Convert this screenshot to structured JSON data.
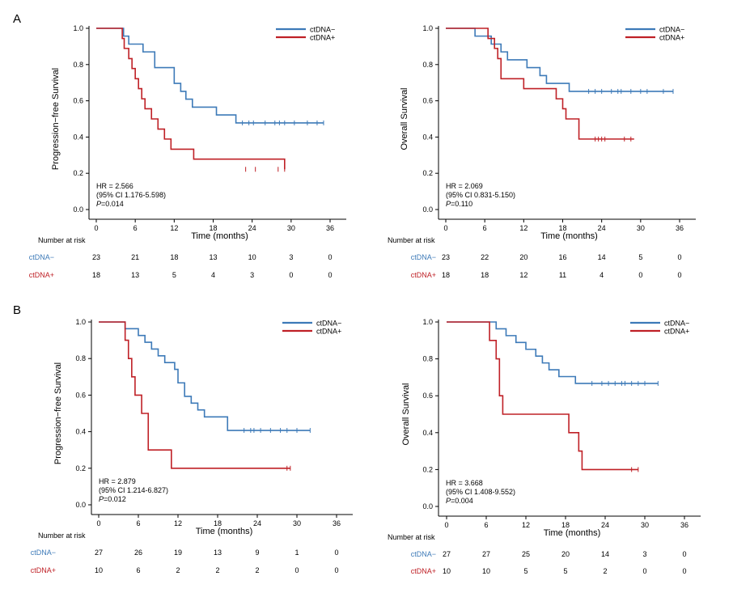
{
  "panel_labels": [
    "A",
    "B"
  ],
  "colors": {
    "neg": "#3d7ab8",
    "pos": "#bf2026",
    "axis": "#000000"
  },
  "chart_data": [
    {
      "type": "line",
      "ylabel": "Progression−free Survival",
      "xlabel": "Time (months)",
      "xlim": [
        0,
        36
      ],
      "ylim": [
        0,
        1
      ],
      "xticks": [
        0,
        6,
        12,
        18,
        24,
        30,
        36
      ],
      "yticks": [
        0.0,
        0.2,
        0.4,
        0.6,
        0.8,
        1.0
      ],
      "legend": "top-right",
      "stats": {
        "hr": "HR = 2.566",
        "ci": "(95% CI 1.176-5.598)",
        "p_prefix": "P",
        "p_value": "=0.014"
      },
      "risk_header": "Number at risk",
      "series": [
        {
          "name": "ctDNA−",
          "color": "#3d7ab8",
          "x": [
            0,
            4.2,
            5.0,
            7.2,
            9.0,
            12.0,
            13.0,
            13.8,
            14.8,
            18.5,
            21.5,
            35
          ],
          "y": [
            1.0,
            0.957,
            0.913,
            0.87,
            0.783,
            0.696,
            0.652,
            0.609,
            0.565,
            0.522,
            0.478,
            0.478
          ],
          "censor_x": [
            22.5,
            23.5,
            24.2,
            26.0,
            27.5,
            28.2,
            29.0,
            30.5,
            32.5,
            34.0,
            35.0
          ],
          "censor_y": 0.478,
          "risk": [
            "23",
            "21",
            "18",
            "13",
            "10",
            "3",
            "0"
          ]
        },
        {
          "name": "ctDNA+",
          "color": "#bf2026",
          "x": [
            0,
            4.0,
            4.3,
            5.0,
            5.5,
            6.0,
            6.5,
            7.0,
            7.5,
            8.5,
            9.5,
            10.5,
            11.5,
            15.0,
            29
          ],
          "y": [
            1.0,
            0.944,
            0.889,
            0.833,
            0.778,
            0.722,
            0.667,
            0.611,
            0.556,
            0.5,
            0.444,
            0.389,
            0.333,
            0.278,
            0.222
          ],
          "final_drop": {
            "x": 15.0,
            "y": 0.222
          },
          "censor_x": [
            23.0,
            24.5,
            28.0,
            29.0
          ],
          "censor_y": 0.222,
          "risk": [
            "18",
            "13",
            "5",
            "4",
            "3",
            "0",
            "0"
          ]
        }
      ]
    },
    {
      "type": "line",
      "ylabel": "Overall Survival",
      "xlabel": "Time (months)",
      "xlim": [
        0,
        36
      ],
      "ylim": [
        0,
        1
      ],
      "xticks": [
        0,
        6,
        12,
        18,
        24,
        30,
        36
      ],
      "yticks": [
        0.0,
        0.2,
        0.4,
        0.6,
        0.8,
        1.0
      ],
      "legend": "top-right",
      "stats": {
        "hr": "HR = 2.069",
        "ci": "(95% CI 0.831-5.150)",
        "p_prefix": "P",
        "p_value": "=0.110"
      },
      "risk_header": "Number at risk",
      "series": [
        {
          "name": "ctDNA−",
          "color": "#3d7ab8",
          "x": [
            0,
            4.5,
            7.0,
            8.5,
            9.5,
            12.5,
            14.5,
            15.5,
            16.5,
            19.0,
            35
          ],
          "y": [
            1.0,
            0.957,
            0.913,
            0.87,
            0.826,
            0.783,
            0.739,
            0.696,
            0.696,
            0.652,
            0.652
          ],
          "censor_x": [
            22.0,
            23.0,
            24.0,
            25.5,
            26.5,
            27.0,
            28.5,
            30.0,
            31.0,
            33.5,
            35.0
          ],
          "censor_y": 0.652,
          "risk": [
            "23",
            "22",
            "20",
            "16",
            "14",
            "5",
            "0"
          ]
        },
        {
          "name": "ctDNA+",
          "color": "#bf2026",
          "x": [
            0,
            6.5,
            7.5,
            8.0,
            8.5,
            12.0,
            17.0,
            18.0,
            18.5,
            20.5,
            29
          ],
          "y": [
            1.0,
            0.944,
            0.889,
            0.833,
            0.722,
            0.667,
            0.611,
            0.556,
            0.5,
            0.389,
            0.389
          ],
          "censor_x": [
            23.0,
            23.5,
            24.0,
            24.5,
            27.5,
            28.5
          ],
          "censor_y": 0.389,
          "risk": [
            "18",
            "18",
            "12",
            "11",
            "4",
            "0",
            "0"
          ]
        }
      ]
    },
    {
      "type": "line",
      "ylabel": "Progression−free Survival",
      "xlabel": "Time (months)",
      "xlim": [
        0,
        36
      ],
      "ylim": [
        0,
        1
      ],
      "xticks": [
        0,
        6,
        12,
        18,
        24,
        30,
        36
      ],
      "yticks": [
        0.0,
        0.2,
        0.4,
        0.6,
        0.8,
        1.0
      ],
      "legend": "top-right",
      "stats": {
        "hr": "HR = 2.879",
        "ci": "(95% CI 1.214-6.827)",
        "p_prefix": "P",
        "p_value": "=0.012"
      },
      "risk_header": "Number at risk",
      "series": [
        {
          "name": "ctDNA−",
          "color": "#3d7ab8",
          "x": [
            0,
            4.0,
            6.0,
            7.0,
            8.0,
            9.0,
            10.0,
            11.5,
            12.0,
            13.0,
            14.0,
            15.0,
            16.0,
            19.5,
            32
          ],
          "y": [
            1.0,
            0.963,
            0.926,
            0.889,
            0.852,
            0.815,
            0.778,
            0.741,
            0.667,
            0.593,
            0.556,
            0.519,
            0.481,
            0.407,
            0.407
          ],
          "censor_x": [
            22.0,
            23.0,
            23.5,
            24.5,
            26.0,
            27.5,
            28.5,
            30.0,
            32.0
          ],
          "censor_y": 0.407,
          "risk": [
            "27",
            "26",
            "19",
            "13",
            "9",
            "1",
            "0"
          ]
        },
        {
          "name": "ctDNA+",
          "color": "#bf2026",
          "x": [
            0,
            4.0,
            4.5,
            5.0,
            5.5,
            6.5,
            7.5,
            11.0,
            29
          ],
          "y": [
            1.0,
            0.9,
            0.8,
            0.7,
            0.6,
            0.5,
            0.3,
            0.2,
            0.2
          ],
          "censor_x": [
            28.5,
            29.0
          ],
          "censor_y": 0.2,
          "risk": [
            "10",
            "6",
            "2",
            "2",
            "2",
            "0",
            "0"
          ]
        }
      ]
    },
    {
      "type": "line",
      "ylabel": "Overall Survival",
      "xlabel": "Time (months)",
      "xlim": [
        0,
        36
      ],
      "ylim": [
        0,
        1
      ],
      "xticks": [
        0,
        6,
        12,
        18,
        24,
        30,
        36
      ],
      "yticks": [
        0.0,
        0.2,
        0.4,
        0.6,
        0.8,
        1.0
      ],
      "legend": "top-right",
      "stats": {
        "hr": "HR = 3.668",
        "ci": "(95% CI 1.408-9.552)",
        "p_prefix": "P",
        "p_value": "=0.004"
      },
      "risk_header": "Number at risk",
      "series": [
        {
          "name": "ctDNA−",
          "color": "#3d7ab8",
          "x": [
            0,
            7.5,
            9.0,
            10.5,
            12.0,
            13.5,
            14.5,
            15.0,
            15.5,
            16.0,
            17.0,
            18.5,
            19.5,
            32
          ],
          "y": [
            1.0,
            0.963,
            0.926,
            0.889,
            0.852,
            0.815,
            0.778,
            0.778,
            0.741,
            0.741,
            0.704,
            0.704,
            0.667,
            0.667
          ],
          "censor_x": [
            22.0,
            23.5,
            24.5,
            25.5,
            26.5,
            27.0,
            28.0,
            29.0,
            30.0,
            32.0
          ],
          "censor_y": 0.667,
          "risk": [
            "27",
            "27",
            "25",
            "20",
            "14",
            "3",
            "0"
          ]
        },
        {
          "name": "ctDNA+",
          "color": "#bf2026",
          "x": [
            0,
            6.5,
            7.5,
            8.0,
            8.5,
            18.5,
            20.0,
            20.5,
            29
          ],
          "y": [
            1.0,
            0.9,
            0.8,
            0.6,
            0.5,
            0.4,
            0.3,
            0.2,
            0.2
          ],
          "censor_x": [
            28.0,
            29.0
          ],
          "censor_y": 0.2,
          "risk": [
            "10",
            "10",
            "5",
            "5",
            "2",
            "0",
            "0"
          ]
        }
      ]
    }
  ]
}
